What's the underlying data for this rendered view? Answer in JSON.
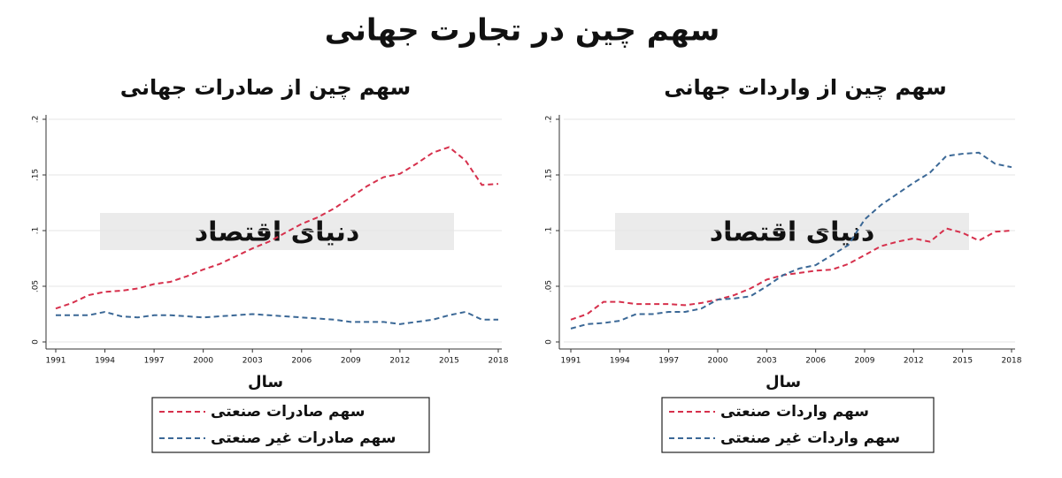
{
  "title": "سهم چین در تجارت جهانی",
  "watermark": "دنیای اقتصاد",
  "chart_data": [
    {
      "type": "line",
      "title": "سهم چین از صادرات جهانی",
      "x_label": "سال",
      "x": [
        1991,
        1992,
        1993,
        1994,
        1995,
        1996,
        1997,
        1998,
        1999,
        2000,
        2001,
        2002,
        2003,
        2004,
        2005,
        2006,
        2007,
        2008,
        2009,
        2010,
        2011,
        2012,
        2013,
        2014,
        2015,
        2016,
        2017,
        2018
      ],
      "series": [
        {
          "name": "سهم صادرات صنعتی",
          "color": "#d6304c",
          "values": [
            0.03,
            0.035,
            0.042,
            0.045,
            0.046,
            0.048,
            0.052,
            0.054,
            0.059,
            0.065,
            0.07,
            0.077,
            0.084,
            0.09,
            0.098,
            0.106,
            0.112,
            0.12,
            0.13,
            0.14,
            0.148,
            0.151,
            0.16,
            0.17,
            0.175,
            0.163,
            0.141,
            0.142
          ]
        },
        {
          "name": "سهم صادرات غیر صنعتی",
          "color": "#3b6896",
          "values": [
            0.024,
            0.024,
            0.024,
            0.027,
            0.023,
            0.022,
            0.024,
            0.024,
            0.023,
            0.022,
            0.023,
            0.024,
            0.025,
            0.024,
            0.023,
            0.022,
            0.021,
            0.02,
            0.018,
            0.018,
            0.018,
            0.016,
            0.018,
            0.02,
            0.024,
            0.027,
            0.02,
            0.02
          ]
        }
      ],
      "xlim": [
        1991,
        2018
      ],
      "xticks": [
        1991,
        1994,
        1997,
        2000,
        2003,
        2006,
        2009,
        2012,
        2015,
        2018
      ],
      "ylim": [
        0,
        0.2
      ],
      "yticks": [
        0,
        {
          "value": 0.05,
          "label": ".05"
        },
        {
          "value": 0.1,
          "label": ".1"
        },
        {
          "value": 0.15,
          "label": ".15"
        },
        {
          "value": 0.2,
          "label": ".2"
        }
      ],
      "grid": true
    },
    {
      "type": "line",
      "title": "سهم چین از واردات جهانی",
      "x_label": "سال",
      "x": [
        1991,
        1992,
        1993,
        1994,
        1995,
        1996,
        1997,
        1998,
        1999,
        2000,
        2001,
        2002,
        2003,
        2004,
        2005,
        2006,
        2007,
        2008,
        2009,
        2010,
        2011,
        2012,
        2013,
        2014,
        2015,
        2016,
        2017,
        2018
      ],
      "series": [
        {
          "name": "سهم واردات صنعتی",
          "color": "#d6304c",
          "values": [
            0.02,
            0.025,
            0.036,
            0.036,
            0.034,
            0.034,
            0.034,
            0.033,
            0.035,
            0.038,
            0.042,
            0.048,
            0.056,
            0.06,
            0.062,
            0.064,
            0.065,
            0.07,
            0.078,
            0.086,
            0.09,
            0.093,
            0.09,
            0.102,
            0.098,
            0.091,
            0.099,
            0.1
          ]
        },
        {
          "name": "سهم واردات غیر صنعتی",
          "color": "#3b6896",
          "values": [
            0.012,
            0.016,
            0.017,
            0.019,
            0.025,
            0.025,
            0.027,
            0.027,
            0.03,
            0.038,
            0.039,
            0.041,
            0.05,
            0.06,
            0.066,
            0.069,
            0.078,
            0.087,
            0.11,
            0.123,
            0.133,
            0.143,
            0.152,
            0.167,
            0.169,
            0.17,
            0.16,
            0.157
          ]
        }
      ],
      "xlim": [
        1991,
        2018
      ],
      "xticks": [
        1991,
        1994,
        1997,
        2000,
        2003,
        2006,
        2009,
        2012,
        2015,
        2018
      ],
      "ylim": [
        0,
        0.2
      ],
      "yticks": [
        0,
        {
          "value": 0.05,
          "label": ".05"
        },
        {
          "value": 0.1,
          "label": ".1"
        },
        {
          "value": 0.15,
          "label": ".15"
        },
        {
          "value": 0.2,
          "label": ".2"
        }
      ],
      "grid": true
    }
  ]
}
